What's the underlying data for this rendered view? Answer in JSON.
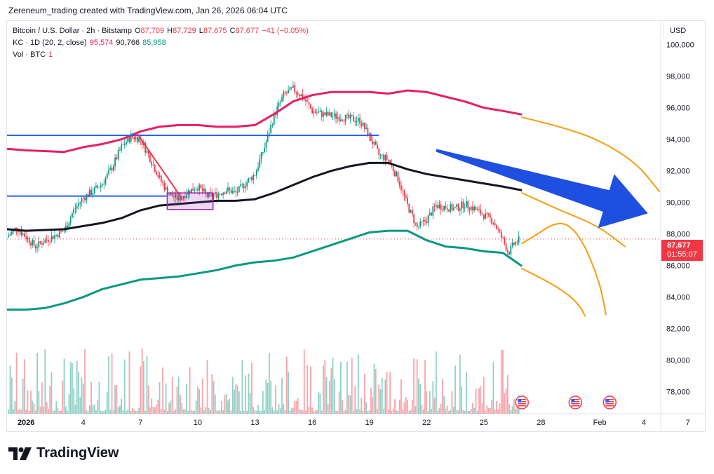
{
  "header": {
    "credit": "Zereneum_trading created with TradingView.com, Jan 26, 2026 06:04 UTC"
  },
  "legend": {
    "symbol": "Bitcoin / U.S. Dollar · 2h · Bitstamp",
    "o_label": "O",
    "o_val": "87,709",
    "h_label": "H",
    "h_val": "87,729",
    "l_label": "L",
    "l_val": "87,675",
    "c_label": "C",
    "c_val": "87,677",
    "chg": "−41 (−0.05%)",
    "kc_label": "KC · 1D (20, 2, close)",
    "kc_upper": "95,574",
    "kc_mid": "90,766",
    "kc_lower": "85,958",
    "vol_label": "Vol · BTC",
    "vol_val": "1"
  },
  "price_axis": {
    "currency": "USD",
    "last_price": "87,677",
    "countdown": "01:55:07"
  },
  "branding": {
    "logo_text": "TradingView"
  },
  "colors": {
    "up": "#089981",
    "down": "#f23645",
    "kc_upper": "#e91e63",
    "kc_mid": "#131722",
    "kc_lower": "#089981",
    "sr_line": "#2962ff",
    "projection": "#f59e0b",
    "arrow": "#1e4fe0",
    "box": "#9c27b0"
  },
  "chart_data": {
    "type": "line",
    "yticks": [
      100000,
      98000,
      96000,
      94000,
      92000,
      90000,
      88000,
      86000,
      84000,
      82000,
      80000,
      78000
    ],
    "ytick_labels": [
      "100,000",
      "98,000",
      "96,000",
      "94,000",
      "92,000",
      "90,000",
      "88,000",
      "86,000",
      "84,000",
      "82,000",
      "80,000",
      "78,000"
    ],
    "ylim": [
      76600,
      101500
    ],
    "xlim": [
      0,
      34.2
    ],
    "xticks": [
      {
        "day": 1,
        "label": "2026"
      },
      {
        "day": 4,
        "label": "4"
      },
      {
        "day": 7,
        "label": "7"
      },
      {
        "day": 10,
        "label": "10"
      },
      {
        "day": 13,
        "label": "13"
      },
      {
        "day": 16,
        "label": "16"
      },
      {
        "day": 19,
        "label": "19"
      },
      {
        "day": 22,
        "label": "22"
      },
      {
        "day": 25,
        "label": "25"
      },
      {
        "day": 28,
        "label": "28"
      },
      {
        "day": 32,
        "label": "Feb"
      },
      {
        "day": 35,
        "label": "4"
      },
      {
        "day": 38,
        "label": "7"
      }
    ],
    "price_path": [
      [
        0,
        87800
      ],
      [
        0.5,
        88400
      ],
      [
        1,
        87800
      ],
      [
        1.5,
        87200
      ],
      [
        2,
        87600
      ],
      [
        3,
        88200
      ],
      [
        3.5,
        89500
      ],
      [
        4,
        90300
      ],
      [
        4.5,
        90700
      ],
      [
        5,
        91200
      ],
      [
        5.5,
        92200
      ],
      [
        6,
        93500
      ],
      [
        6.5,
        94200
      ],
      [
        7,
        94000
      ],
      [
        7.5,
        92800
      ],
      [
        8,
        91500
      ],
      [
        8.5,
        90500
      ],
      [
        9,
        90200
      ],
      [
        9.5,
        90700
      ],
      [
        10,
        91000
      ],
      [
        10.5,
        90400
      ],
      [
        11,
        90500
      ],
      [
        11.5,
        90800
      ],
      [
        12,
        90600
      ],
      [
        12.5,
        91200
      ],
      [
        13,
        91800
      ],
      [
        13.5,
        93500
      ],
      [
        14,
        95500
      ],
      [
        14.5,
        96800
      ],
      [
        15,
        97200
      ],
      [
        15.5,
        96700
      ],
      [
        16,
        95800
      ],
      [
        16.5,
        95600
      ],
      [
        17,
        95500
      ],
      [
        17.5,
        95400
      ],
      [
        18,
        95300
      ],
      [
        18.5,
        95200
      ],
      [
        19,
        94200
      ],
      [
        19.5,
        93000
      ],
      [
        20,
        92700
      ],
      [
        20.5,
        91500
      ],
      [
        21,
        89800
      ],
      [
        21.5,
        88400
      ],
      [
        22,
        88900
      ],
      [
        22.5,
        89800
      ],
      [
        23,
        89700
      ],
      [
        23.5,
        89600
      ],
      [
        24,
        89900
      ],
      [
        24.5,
        89600
      ],
      [
        25,
        89200
      ],
      [
        25.5,
        88800
      ],
      [
        26,
        87600
      ],
      [
        26.3,
        86800
      ],
      [
        26.6,
        87400
      ],
      [
        26.9,
        87677
      ]
    ],
    "kc_upper": [
      [
        0,
        93400
      ],
      [
        1,
        93300
      ],
      [
        3,
        93200
      ],
      [
        4,
        93500
      ],
      [
        5,
        93700
      ],
      [
        6,
        94000
      ],
      [
        7,
        94500
      ],
      [
        8,
        94800
      ],
      [
        9,
        94900
      ],
      [
        10,
        94900
      ],
      [
        11,
        94800
      ],
      [
        12,
        94800
      ],
      [
        13,
        94900
      ],
      [
        14,
        95600
      ],
      [
        15,
        96400
      ],
      [
        16,
        96800
      ],
      [
        17,
        97000
      ],
      [
        18,
        97000
      ],
      [
        19,
        97000
      ],
      [
        20,
        96900
      ],
      [
        21,
        97100
      ],
      [
        22,
        97000
      ],
      [
        23,
        96700
      ],
      [
        24,
        96400
      ],
      [
        25,
        96000
      ],
      [
        26,
        95800
      ],
      [
        27,
        95574
      ]
    ],
    "kc_mid": [
      [
        0,
        88300
      ],
      [
        1,
        88200
      ],
      [
        3,
        88300
      ],
      [
        4,
        88500
      ],
      [
        5,
        88700
      ],
      [
        6,
        89000
      ],
      [
        7,
        89500
      ],
      [
        8,
        89800
      ],
      [
        9,
        89900
      ],
      [
        10,
        90000
      ],
      [
        11,
        90100
      ],
      [
        12,
        90100
      ],
      [
        13,
        90200
      ],
      [
        14,
        90600
      ],
      [
        15,
        91100
      ],
      [
        16,
        91600
      ],
      [
        17,
        92000
      ],
      [
        18,
        92300
      ],
      [
        19,
        92500
      ],
      [
        20,
        92500
      ],
      [
        21,
        92100
      ],
      [
        22,
        91800
      ],
      [
        23,
        91600
      ],
      [
        24,
        91400
      ],
      [
        25,
        91200
      ],
      [
        26,
        91000
      ],
      [
        27,
        90766
      ]
    ],
    "kc_lower": [
      [
        0,
        83200
      ],
      [
        1,
        83200
      ],
      [
        2,
        83300
      ],
      [
        3,
        83600
      ],
      [
        4,
        84000
      ],
      [
        5,
        84500
      ],
      [
        6,
        84800
      ],
      [
        7,
        85100
      ],
      [
        8,
        85200
      ],
      [
        9,
        85300
      ],
      [
        10,
        85500
      ],
      [
        11,
        85700
      ],
      [
        12,
        86000
      ],
      [
        13,
        86200
      ],
      [
        14,
        86300
      ],
      [
        15,
        86500
      ],
      [
        16,
        86900
      ],
      [
        17,
        87300
      ],
      [
        18,
        87700
      ],
      [
        19,
        88100
      ],
      [
        20,
        88200
      ],
      [
        21,
        88200
      ],
      [
        22,
        87600
      ],
      [
        23,
        87200
      ],
      [
        24,
        87100
      ],
      [
        25,
        86900
      ],
      [
        26,
        86800
      ],
      [
        27,
        85958
      ]
    ],
    "hlines": [
      {
        "y": 94250,
        "x0": 0,
        "x1": 19.5
      },
      {
        "y": 90400,
        "x0": 0,
        "x1": 8.4
      }
    ],
    "trendline": [
      [
        6.8,
        94400
      ],
      [
        9.2,
        90200
      ]
    ],
    "box": {
      "x0": 8.4,
      "x1": 10.8,
      "y0": 89550,
      "y1": 90600
    },
    "projections": [
      [
        [
          27,
          95400
        ],
        [
          29,
          94800
        ],
        [
          31,
          94000
        ],
        [
          33,
          92500
        ],
        [
          34.2,
          90700
        ]
      ],
      [
        [
          27,
          90600
        ],
        [
          29,
          89500
        ],
        [
          31,
          88500
        ],
        [
          32.4,
          87200
        ]
      ],
      [
        [
          27,
          87400
        ],
        [
          27.7,
          87900
        ],
        [
          28.7,
          88700
        ],
        [
          29.5,
          88600
        ],
        [
          30.3,
          87300
        ],
        [
          31.1,
          84800
        ],
        [
          31.4,
          82900
        ]
      ],
      [
        [
          27,
          85800
        ],
        [
          28.5,
          84900
        ],
        [
          29.6,
          84000
        ],
        [
          30.1,
          83300
        ],
        [
          30.3,
          82800
        ]
      ]
    ],
    "arrow": {
      "tail": [
        22.5,
        93300
      ],
      "head": [
        33.6,
        89300
      ]
    },
    "volume_note": "volume histogram, BTC",
    "event_markers": [
      27,
      29.8,
      31.6
    ]
  }
}
